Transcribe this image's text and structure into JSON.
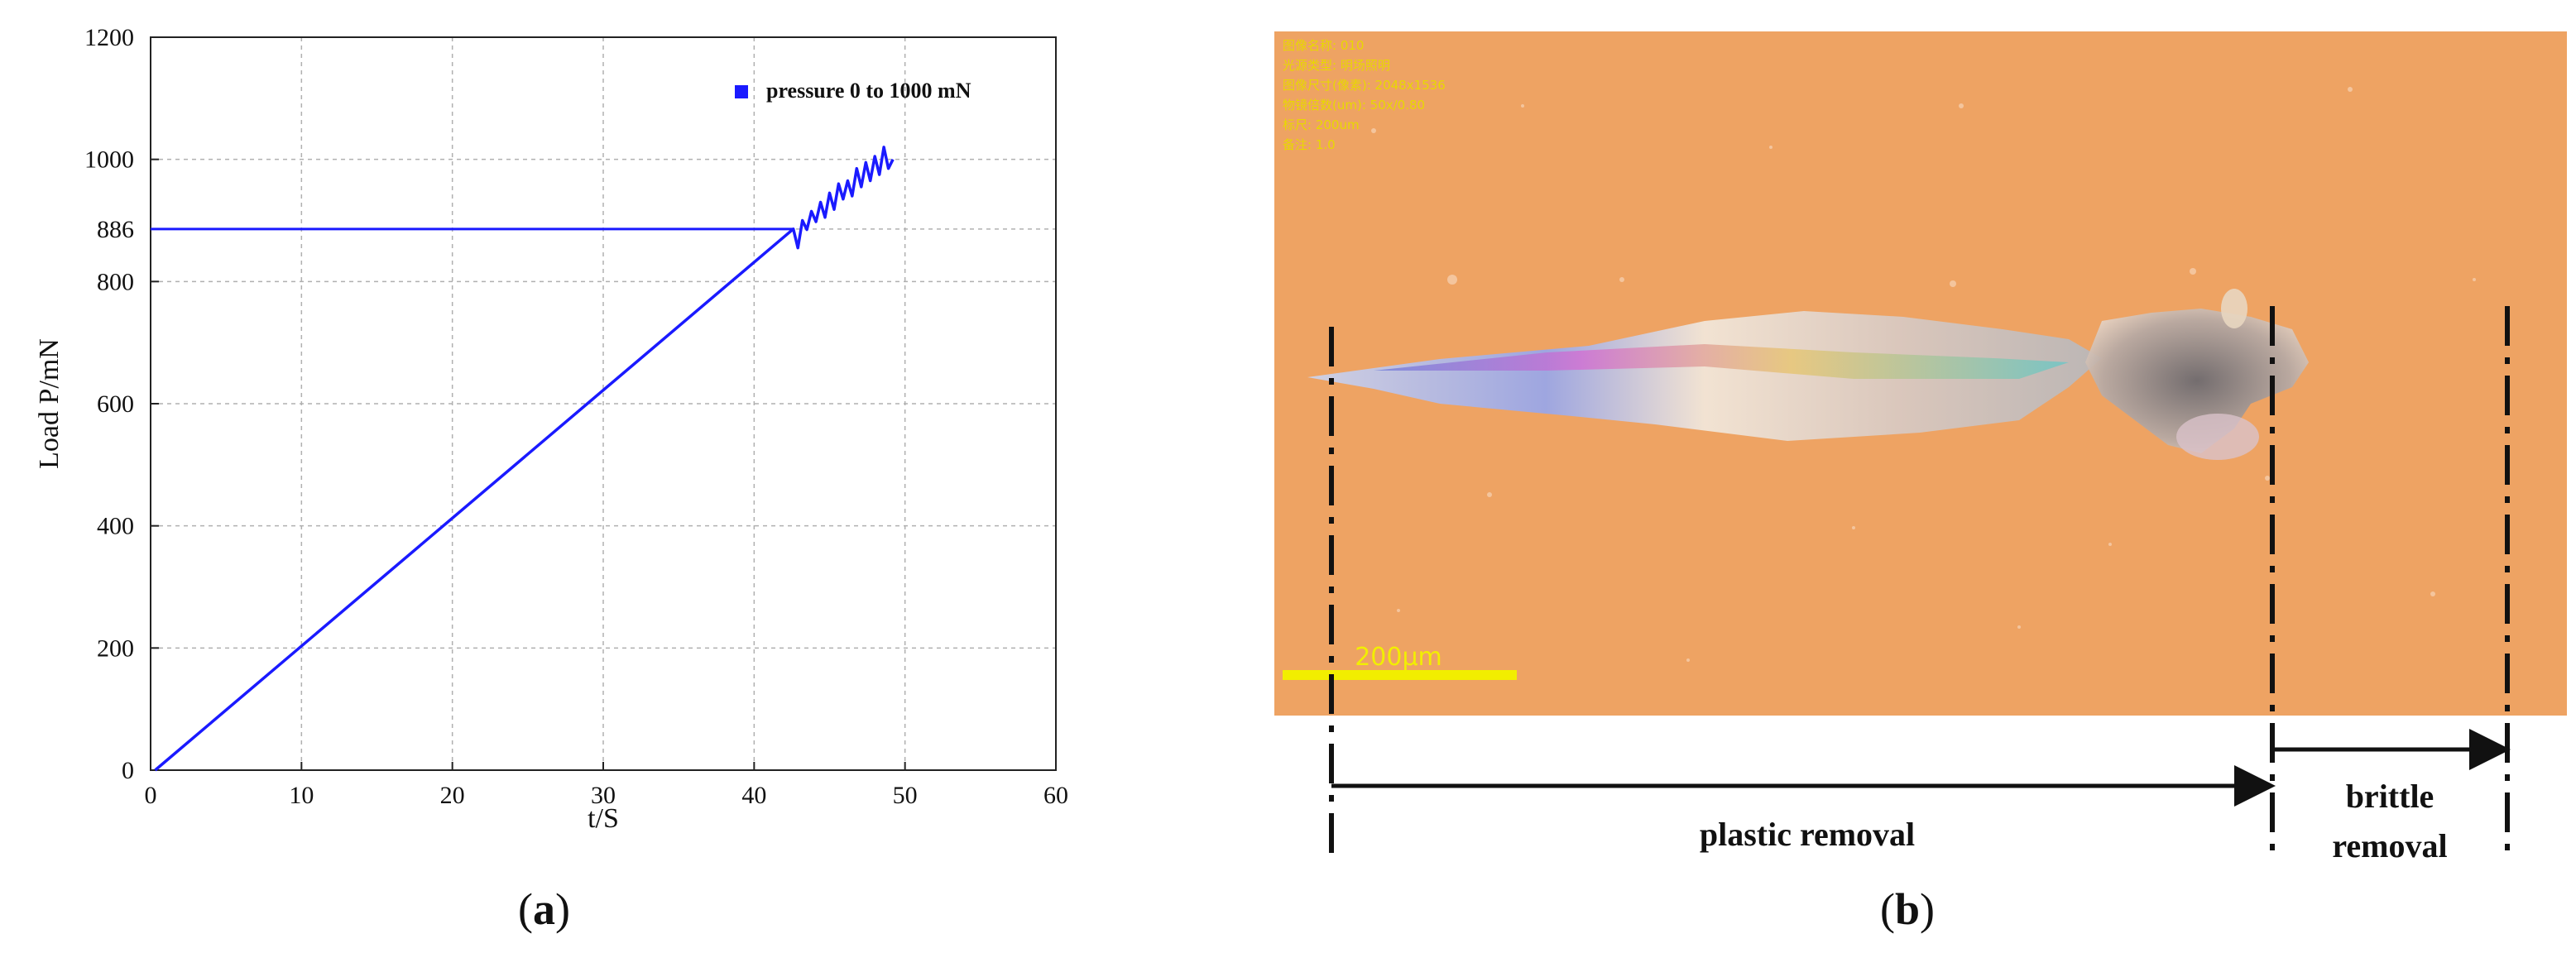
{
  "panel_labels": {
    "a": "a",
    "b": "b"
  },
  "chart_data": {
    "type": "line",
    "xlabel": "t/S",
    "ylabel": "Load  P/mN",
    "xlim": [
      0,
      60
    ],
    "ylim": [
      0,
      1200
    ],
    "x_ticks": [
      0,
      10,
      20,
      30,
      40,
      50,
      60
    ],
    "y_ticks": [
      0,
      200,
      400,
      600,
      800,
      886,
      1000,
      1200
    ],
    "grid": true,
    "legend_position": "top-right",
    "colors": {
      "series": "#1a1aff",
      "grid": "#b0b0b0"
    },
    "series": [
      {
        "name": "pressure 0 to 1000 mN",
        "x": [
          0.3,
          42.6,
          42.9,
          43.2,
          43.5,
          43.8,
          44.1,
          44.4,
          44.7,
          45.0,
          45.3,
          45.6,
          45.9,
          46.2,
          46.5,
          46.8,
          47.1,
          47.4,
          47.7,
          48.0,
          48.3,
          48.6,
          48.9,
          49.2
        ],
        "y": [
          0,
          886,
          855,
          900,
          885,
          915,
          898,
          930,
          905,
          945,
          918,
          960,
          935,
          965,
          940,
          985,
          955,
          995,
          965,
          1005,
          975,
          1020,
          985,
          1000
        ]
      }
    ],
    "reference_line": {
      "y": 886,
      "x_end": 42.6
    }
  },
  "micrograph": {
    "overlay_lines": [
      "图像名称: 010",
      "光源类型: 明场照明",
      "图像尺寸(像素): 2048x1536",
      "物镜倍数(um): 50x/0.80",
      "标尺: 200um",
      "备注: 1.0"
    ],
    "scale_bar_label": "200μm",
    "annotations": {
      "plastic": "plastic removal",
      "brittle_line1": "brittle",
      "brittle_line2": "removal"
    }
  }
}
